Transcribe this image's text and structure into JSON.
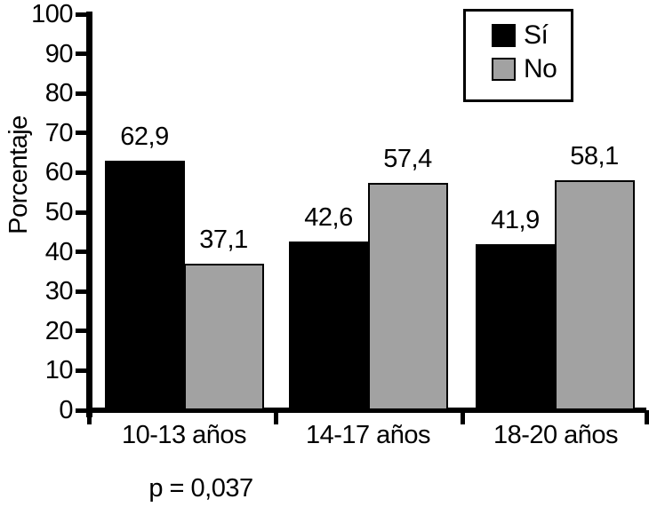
{
  "chart_data": {
    "type": "bar",
    "title": "",
    "ylabel": "Porcentaje",
    "xlabel": "",
    "ylim": [
      0,
      100
    ],
    "yticks": [
      0,
      10,
      20,
      30,
      40,
      50,
      60,
      70,
      80,
      90,
      100
    ],
    "categories": [
      "10-13 años",
      "14-17 años",
      "18-20 años"
    ],
    "series": [
      {
        "name": "Sí",
        "color": "#000000",
        "values": [
          62.9,
          42.6,
          41.9
        ],
        "labels": [
          "62,9",
          "42,6",
          "41,9"
        ]
      },
      {
        "name": "No",
        "color": "#a2a2a2",
        "values": [
          37.1,
          57.4,
          58.1
        ],
        "labels": [
          "37,1",
          "57,4",
          "58,1"
        ]
      }
    ],
    "legend": {
      "position": "top-right",
      "items": [
        "Sí",
        "No"
      ]
    },
    "annotation": "p = 0,037",
    "grid": false,
    "axis_color": "#000000",
    "background": "#ffffff"
  }
}
